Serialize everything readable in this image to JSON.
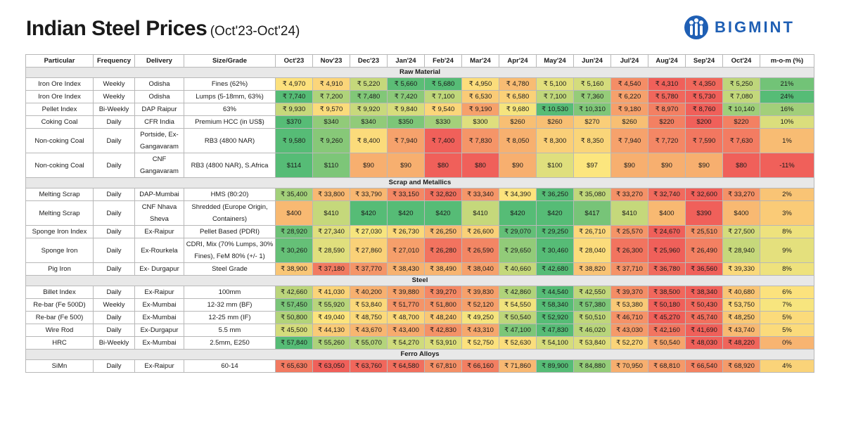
{
  "title": "Indian Steel Prices",
  "subtitle": "(Oct'23-Oct'24)",
  "brand": "BIGMINT",
  "brand_icon": "bigmint-people-logo-icon",
  "colors": {
    "brand_blue": "#1f5fb4",
    "scale_low": "#f0605a",
    "scale_mid": "#fce67e",
    "scale_high": "#56bc76",
    "section_bg": "#e8e8e8"
  },
  "headers": [
    "Particular",
    "Frequency",
    "Delivery",
    "Size/Grade",
    "Oct'23",
    "Nov'23",
    "Dec'23",
    "Jan'24",
    "Feb'24",
    "Mar'24",
    "Apr'24",
    "May'24",
    "Jun'24",
    "Jul'24",
    "Aug'24",
    "Sep'24",
    "Oct'24",
    "m-o-m (%)"
  ],
  "sections": [
    {
      "name": "Raw Material",
      "rows": [
        {
          "particular": "Iron Ore Index",
          "frequency": "Weekly",
          "delivery": "Odisha",
          "grade": "Fines (62%)",
          "prices": [
            "₹ 4,970",
            "₹ 4,910",
            "₹ 5,220",
            "₹ 5,660",
            "₹ 5,680",
            "₹ 4,950",
            "₹ 4,780",
            "₹ 5,100",
            "₹ 5,160",
            "₹ 4,540",
            "₹ 4,310",
            "₹ 4,350",
            "₹ 5,250"
          ],
          "mom": "21%",
          "mom_value": 21
        },
        {
          "particular": "Iron Ore Index",
          "frequency": "Weekly",
          "delivery": "Odisha",
          "grade": "Lumps (5-18mm, 63%)",
          "prices": [
            "₹ 7,740",
            "₹ 7,200",
            "₹ 7,480",
            "₹ 7,420",
            "₹ 7,100",
            "₹ 6,530",
            "₹ 6,580",
            "₹ 7,100",
            "₹ 7,360",
            "₹ 6,220",
            "₹ 5,780",
            "₹ 5,730",
            "₹ 7,080"
          ],
          "mom": "24%",
          "mom_value": 24
        },
        {
          "particular": "Pellet Index",
          "frequency": "Bi-Weekly",
          "delivery": "DAP Raipur",
          "grade": "63%",
          "prices": [
            "₹ 9,930",
            "₹ 9,570",
            "₹ 9,920",
            "₹ 9,840",
            "₹ 9,540",
            "₹ 9,190",
            "₹ 9,680",
            "₹ 10,530",
            "₹ 10,310",
            "₹ 9,180",
            "₹ 8,970",
            "₹ 8,760",
            "₹ 10,140"
          ],
          "mom": "16%",
          "mom_value": 16
        },
        {
          "particular": "Coking Coal",
          "frequency": "Daily",
          "delivery": "CFR India",
          "grade": "Premium HCC (in US$)",
          "prices": [
            "$370",
            "$340",
            "$340",
            "$350",
            "$330",
            "$300",
            "$260",
            "$260",
            "$270",
            "$260",
            "$220",
            "$200",
            "$220"
          ],
          "mom": "10%",
          "mom_value": 10
        },
        {
          "particular": "Non-coking Coal",
          "frequency": "Daily",
          "delivery": "Portside, Ex-Gangavaram",
          "grade": "RB3 (4800 NAR)",
          "prices": [
            "₹ 9,580",
            "₹ 9,260",
            "₹ 8,400",
            "₹ 7,940",
            "₹ 7,400",
            "₹ 7,830",
            "₹ 8,050",
            "₹ 8,300",
            "₹ 8,350",
            "₹ 7,940",
            "₹ 7,720",
            "₹ 7,590",
            "₹ 7,630"
          ],
          "mom": "1%",
          "mom_value": 1
        },
        {
          "particular": "Non-coking Coal",
          "frequency": "Daily",
          "delivery": "CNF Gangavaram",
          "grade": "RB3 (4800 NAR), S.Africa",
          "prices": [
            "$114",
            "$110",
            "$90",
            "$90",
            "$80",
            "$80",
            "$90",
            "$100",
            "$97",
            "$90",
            "$90",
            "$90",
            "$80"
          ],
          "mom": "-11%",
          "mom_value": -11
        }
      ]
    },
    {
      "name": "Scrap and Metallics",
      "rows": [
        {
          "particular": "Melting Scrap",
          "frequency": "Daily",
          "delivery": "DAP-Mumbai",
          "grade": "HMS (80:20)",
          "prices": [
            "₹ 35,400",
            "₹ 33,800",
            "₹ 33,790",
            "₹ 33,150",
            "₹ 32,820",
            "₹ 33,340",
            "₹ 34,390",
            "₹ 36,250",
            "₹ 35,080",
            "₹ 33,270",
            "₹ 32,740",
            "₹ 32,600",
            "₹ 33,270"
          ],
          "mom": "2%",
          "mom_value": 2
        },
        {
          "particular": "Melting Scrap",
          "frequency": "Daily",
          "delivery": "CNF Nhava Sheva",
          "grade": "Shredded (Europe Origin, Containers)",
          "prices": [
            "$400",
            "$410",
            "$420",
            "$420",
            "$420",
            "$410",
            "$420",
            "$420",
            "$417",
            "$410",
            "$400",
            "$390",
            "$400"
          ],
          "mom": "3%",
          "mom_value": 3
        },
        {
          "particular": "Sponge Iron Index",
          "frequency": "Daily",
          "delivery": "Ex-Raipur",
          "grade": "Pellet Based (PDRI)",
          "prices": [
            "₹ 28,920",
            "₹ 27,340",
            "₹ 27,030",
            "₹ 26,730",
            "₹ 26,250",
            "₹ 26,600",
            "₹ 29,070",
            "₹ 29,250",
            "₹ 26,710",
            "₹ 25,570",
            "₹ 24,670",
            "₹ 25,510",
            "₹ 27,500"
          ],
          "mom": "8%",
          "mom_value": 8
        },
        {
          "particular": "Sponge Iron",
          "frequency": "Daily",
          "delivery": "Ex-Rourkela",
          "grade": "CDRI, Mix (70% Lumps, 30% Fines), FeM 80% (+/- 1)",
          "prices": [
            "₹ 30,260",
            "₹ 28,590",
            "₹ 27,860",
            "₹ 27,010",
            "₹ 26,280",
            "₹ 26,590",
            "₹ 29,650",
            "₹ 30,460",
            "₹ 28,040",
            "₹ 26,300",
            "₹ 25,960",
            "₹ 26,490",
            "₹ 28,940"
          ],
          "mom": "9%",
          "mom_value": 9
        },
        {
          "particular": "Pig Iron",
          "frequency": "Daily",
          "delivery": "Ex- Durgapur",
          "grade": "Steel Grade",
          "prices": [
            "₹ 38,900",
            "₹ 37,180",
            "₹ 37,770",
            "₹ 38,430",
            "₹ 38,490",
            "₹ 38,040",
            "₹ 40,660",
            "₹ 42,680",
            "₹ 38,820",
            "₹ 37,710",
            "₹ 36,780",
            "₹ 36,560",
            "₹ 39,330"
          ],
          "mom": "8%",
          "mom_value": 8
        }
      ]
    },
    {
      "name": "Steel",
      "rows": [
        {
          "particular": "Billet Index",
          "frequency": "Daily",
          "delivery": "Ex-Raipur",
          "grade": "100mm",
          "prices": [
            "₹ 42,660",
            "₹ 41,030",
            "₹ 40,200",
            "₹ 39,880",
            "₹ 39,270",
            "₹ 39,830",
            "₹ 42,860",
            "₹ 44,540",
            "₹ 42,550",
            "₹ 39,370",
            "₹ 38,500",
            "₹ 38,340",
            "₹ 40,680"
          ],
          "mom": "6%",
          "mom_value": 6
        },
        {
          "particular": "Re-bar (Fe 500D)",
          "frequency": "Weekly",
          "delivery": "Ex-Mumbai",
          "grade": "12-32 mm (BF)",
          "prices": [
            "₹ 57,450",
            "₹ 55,920",
            "₹ 53,840",
            "₹ 51,770",
            "₹ 51,800",
            "₹ 52,120",
            "₹ 54,550",
            "₹ 58,340",
            "₹ 57,380",
            "₹ 53,380",
            "₹ 50,180",
            "₹ 50,430",
            "₹ 53,750"
          ],
          "mom": "7%",
          "mom_value": 7
        },
        {
          "particular": "Re-bar (Fe 500)",
          "frequency": "Daily",
          "delivery": "Ex-Mumbai",
          "grade": "12-25 mm (IF)",
          "prices": [
            "₹ 50,800",
            "₹ 49,040",
            "₹ 48,750",
            "₹ 48,700",
            "₹ 48,240",
            "₹ 49,250",
            "₹ 50,540",
            "₹ 52,920",
            "₹ 50,510",
            "₹ 46,710",
            "₹ 45,270",
            "₹ 45,740",
            "₹ 48,250"
          ],
          "mom": "5%",
          "mom_value": 5
        },
        {
          "particular": "Wire Rod",
          "frequency": "Daily",
          "delivery": "Ex-Durgapur",
          "grade": "5.5 mm",
          "prices": [
            "₹ 45,500",
            "₹ 44,130",
            "₹ 43,670",
            "₹ 43,400",
            "₹ 42,830",
            "₹ 43,310",
            "₹ 47,100",
            "₹ 47,830",
            "₹ 46,020",
            "₹ 43,030",
            "₹ 42,160",
            "₹ 41,690",
            "₹ 43,740"
          ],
          "mom": "5%",
          "mom_value": 5
        },
        {
          "particular": "HRC",
          "frequency": "Bi-Weekly",
          "delivery": "Ex-Mumbai",
          "grade": "2.5mm, E250",
          "prices": [
            "₹ 57,840",
            "₹ 55,260",
            "₹ 55,070",
            "₹ 54,270",
            "₹ 53,910",
            "₹ 52,750",
            "₹ 52,630",
            "₹ 54,100",
            "₹ 53,840",
            "₹ 52,270",
            "₹ 50,540",
            "₹ 48,030",
            "₹ 48,220"
          ],
          "mom": "0%",
          "mom_value": 0
        }
      ]
    },
    {
      "name": "Ferro Alloys",
      "rows": [
        {
          "particular": "SiMn",
          "frequency": "Daily",
          "delivery": "Ex-Raipur",
          "grade": "60-14",
          "prices": [
            "₹ 65,630",
            "₹ 63,050",
            "₹ 63,760",
            "₹ 64,580",
            "₹ 67,810",
            "₹ 66,160",
            "₹ 71,860",
            "₹ 89,900",
            "₹ 84,880",
            "₹ 70,950",
            "₹ 68,810",
            "₹ 66,540",
            "₹ 68,920"
          ],
          "mom": "4%",
          "mom_value": 4
        }
      ]
    }
  ]
}
